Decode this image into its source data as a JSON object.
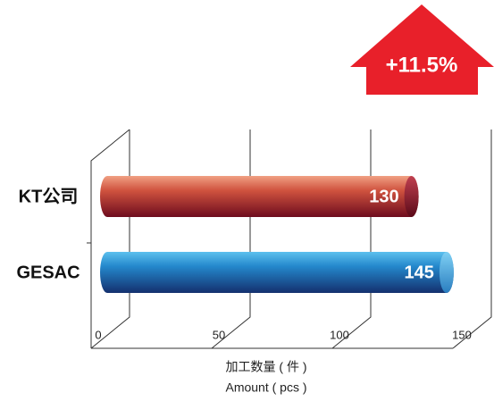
{
  "chart_data": {
    "type": "bar",
    "orientation": "horizontal",
    "annotation": "+11.5%",
    "categories": [
      "KT公司",
      "GESAC"
    ],
    "values": [
      130,
      145
    ],
    "colors": [
      "#b0303a",
      "#1f6fb5"
    ],
    "xlim": [
      0,
      150
    ],
    "xticks": [
      0,
      50,
      100,
      150
    ],
    "xlabel": [
      "加工数量 ( 件 )",
      "Amount ( pcs )"
    ],
    "grid": true
  }
}
